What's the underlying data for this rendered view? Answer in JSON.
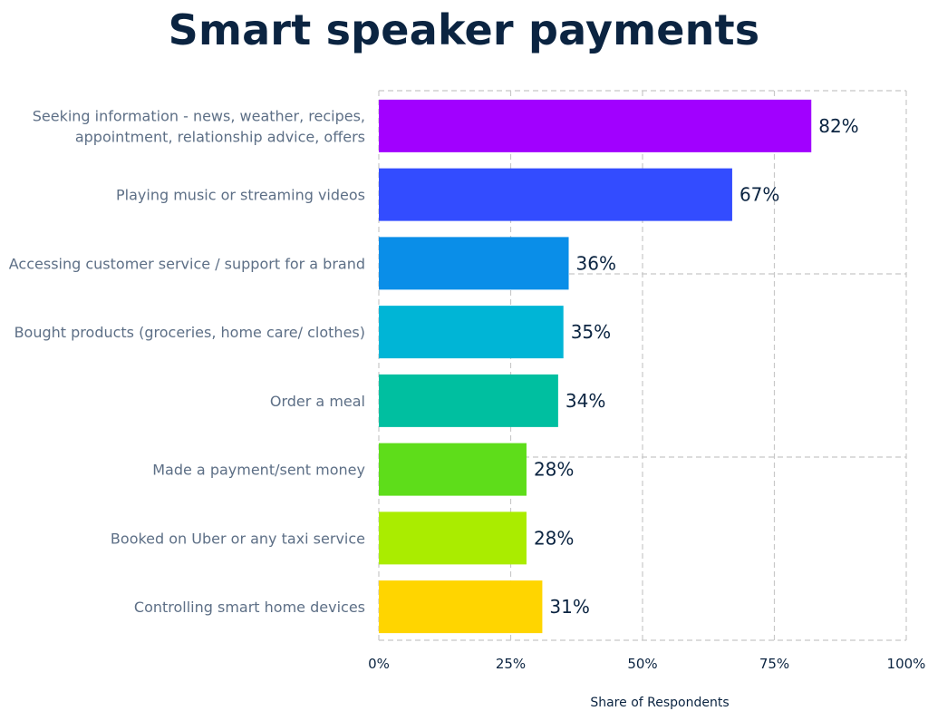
{
  "chart_data": {
    "type": "bar",
    "orientation": "horizontal",
    "title": "Smart speaker payments",
    "xlabel": "Share of Respondents",
    "ylabel": "",
    "xlim": [
      0,
      100
    ],
    "x_ticks": [
      0,
      25,
      50,
      75,
      100
    ],
    "x_tick_labels": [
      "0%",
      "25%",
      "50%",
      "75%",
      "100%"
    ],
    "grid": true,
    "categories": [
      [
        "Seeking information - news, weather, recipes,",
        "appointment, relationship advice, offers"
      ],
      [
        "Playing music or streaming videos"
      ],
      [
        "Accessing customer service / support for a brand"
      ],
      [
        "Bought products (groceries, home care/ clothes)"
      ],
      [
        "Order a meal"
      ],
      [
        "Made a payment/sent money"
      ],
      [
        "Booked on Uber or any taxi service"
      ],
      [
        "Controlling smart home devices"
      ]
    ],
    "values": [
      82,
      67,
      36,
      35,
      34,
      28,
      28,
      31
    ],
    "value_labels": [
      "82%",
      "67%",
      "36%",
      "35%",
      "34%",
      "28%",
      "28%",
      "31%"
    ],
    "colors": [
      "#a100ff",
      "#334cff",
      "#0a8ee8",
      "#00b5d6",
      "#00bfa0",
      "#5edd1a",
      "#aaec00",
      "#ffd500"
    ]
  }
}
